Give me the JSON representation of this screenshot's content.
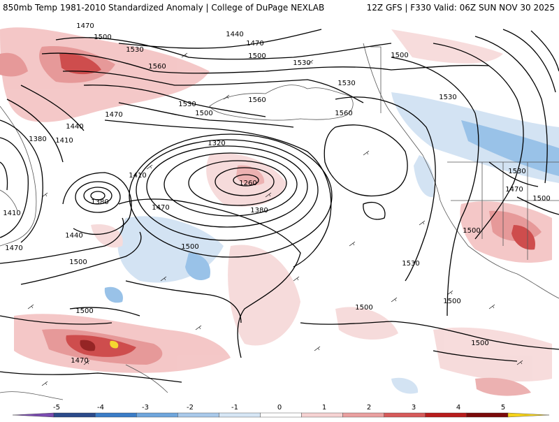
{
  "header": {
    "left_title": "850mb Temp 1981-2010 Standardized Anomaly | College of DuPage NEXLAB",
    "right_title": "12Z GFS | F330 Valid: 06Z SUN NOV 30 2025"
  },
  "contour_labels": [
    "1470",
    "1500",
    "1440",
    "1470",
    "1500",
    "1530",
    "1560",
    "1530",
    "1500",
    "1530",
    "1560",
    "1530",
    "1530",
    "1500",
    "1560",
    "1470",
    "1440",
    "1380",
    "1410",
    "1320",
    "1410",
    "1380",
    "1260",
    "1470",
    "1410",
    "1380",
    "1440",
    "1470",
    "1500",
    "1500",
    "1530",
    "1500",
    "1500",
    "1500",
    "1500",
    "1470",
    "1500",
    "1530",
    "1470",
    "1500"
  ],
  "colorbar": {
    "ticks": [
      "-5",
      "-4",
      "-3",
      "-2",
      "-1",
      "0",
      "1",
      "2",
      "3",
      "4",
      "5"
    ],
    "colors": [
      "#7a4bb0",
      "#2b4a8a",
      "#3a7cc7",
      "#6fa6dc",
      "#a9c9ea",
      "#d6e6f5",
      "#ffffff",
      "#f6d2d2",
      "#eaa0a0",
      "#d65a5a",
      "#b81c1c",
      "#7a0a0a",
      "#f5d21a"
    ]
  },
  "map_colors": {
    "land": "#ffffff",
    "water": "#ffffff",
    "contour": "#000000",
    "border": "#555555"
  }
}
